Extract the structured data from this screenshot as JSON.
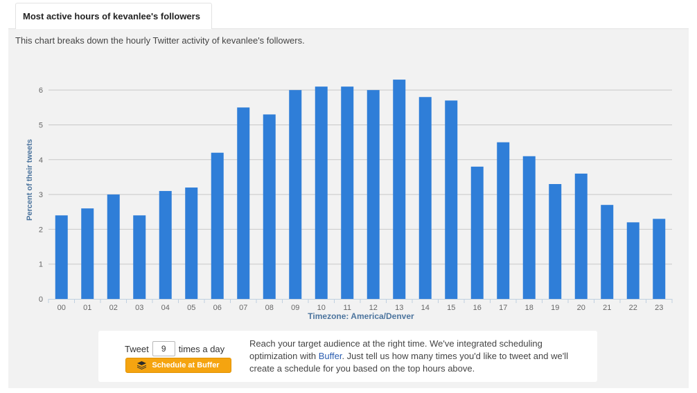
{
  "header": {
    "title": "Most active hours of kevanlee's followers",
    "description": "This chart breaks down the hourly Twitter activity of kevanlee's followers."
  },
  "chart_data": {
    "type": "bar",
    "title": "",
    "xlabel": "Timezone: America/Denver",
    "ylabel": "Percent of their tweets",
    "categories": [
      "00",
      "01",
      "02",
      "03",
      "04",
      "05",
      "06",
      "07",
      "08",
      "09",
      "10",
      "11",
      "12",
      "13",
      "14",
      "15",
      "16",
      "17",
      "18",
      "19",
      "20",
      "21",
      "22",
      "23"
    ],
    "values": [
      2.4,
      2.6,
      3.0,
      2.4,
      3.1,
      3.2,
      4.2,
      5.5,
      5.3,
      6.0,
      6.1,
      6.1,
      6.0,
      6.3,
      5.8,
      5.7,
      3.8,
      4.5,
      4.1,
      3.3,
      3.6,
      2.7,
      2.2,
      2.3
    ],
    "ylim": [
      0,
      6.6
    ],
    "yticks": [
      0,
      1,
      2,
      3,
      4,
      5,
      6
    ],
    "bar_color": "#2f7ed8",
    "grid": true
  },
  "cta": {
    "tweet_label": "Tweet",
    "tweet_count": "9",
    "times_label": "times a day",
    "button_label": "Schedule at Buffer",
    "text_before": "Reach your target audience at the right time. We've integrated scheduling optimization with ",
    "link_text": "Buffer",
    "text_after": ". Just tell us how many times you'd like to tweet and we'll create a schedule for you based on the top hours above."
  },
  "colors": {
    "accent": "#2f7ed8",
    "axis_title": "#4d759e",
    "button": "#f5a410",
    "link": "#2a5db0"
  }
}
